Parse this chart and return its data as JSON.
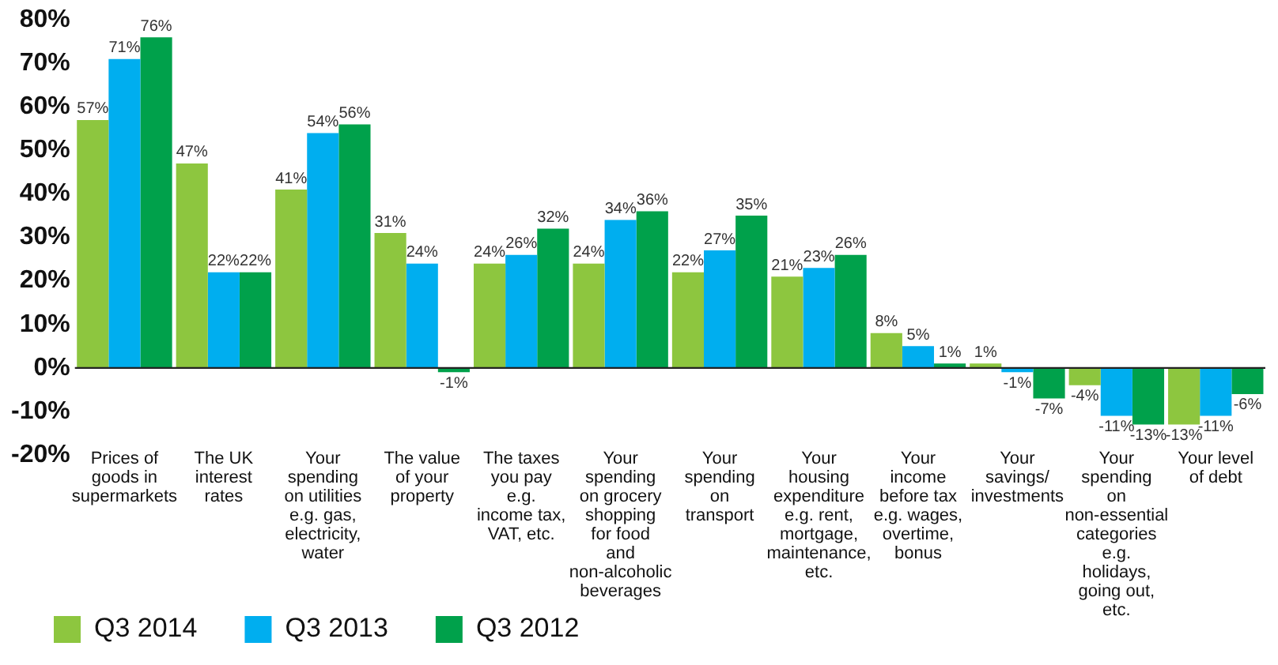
{
  "chart_data": {
    "type": "bar",
    "categories": [
      "Prices of goods in supermarkets",
      "The UK interest rates",
      "Your spending on utilities e.g. gas, electricity, water",
      "The value of your property",
      "The taxes you pay e.g. income tax, VAT, etc.",
      "Your spending on grocery shopping for food and non-alcoholic beverages",
      "Your spending on transport",
      "Your housing expenditure e.g. rent, mortgage, maintenance, etc.",
      "Your income before tax e.g. wages, overtime, bonus",
      "Your savings/ investments",
      "Your spending on non-essential categories e.g. holidays, going out, etc.",
      "Your level of debt"
    ],
    "series": [
      {
        "name": "Q3 2014",
        "color": "#8dc63f",
        "values": [
          57,
          47,
          41,
          31,
          24,
          24,
          22,
          21,
          8,
          1,
          -4,
          -13
        ],
        "value_labels": [
          "57%",
          "47%",
          "41%",
          "31%",
          "24%",
          "24%",
          "22%",
          "21%",
          "8%",
          "1%",
          "-4%",
          "-13%"
        ]
      },
      {
        "name": "Q3 2013",
        "color": "#00aeef",
        "values": [
          71,
          22,
          54,
          24,
          26,
          34,
          27,
          23,
          5,
          -1,
          -11,
          -11
        ],
        "value_labels": [
          "71%",
          "22%",
          "54%",
          "24%",
          "26%",
          "34%",
          "27%",
          "23%",
          "5%",
          "-1%",
          "-11%",
          "-11%"
        ]
      },
      {
        "name": "Q3 2012",
        "color": "#00a14b",
        "values": [
          76,
          22,
          56,
          -1,
          32,
          36,
          35,
          26,
          1,
          -7,
          -13,
          -6
        ],
        "value_labels": [
          "76%",
          "22%",
          "56%",
          "-1%",
          "32%",
          "36%",
          "35%",
          "26%",
          "1%",
          "-7%",
          "-13%",
          "-6%"
        ]
      }
    ],
    "ylim": [
      -20,
      80
    ],
    "yticks": [
      {
        "value": -20,
        "label": "-20%"
      },
      {
        "value": -10,
        "label": "-10%"
      },
      {
        "value": 0,
        "label": "0%"
      },
      {
        "value": 10,
        "label": "10%"
      },
      {
        "value": 20,
        "label": "20%"
      },
      {
        "value": 30,
        "label": "30%"
      },
      {
        "value": 40,
        "label": "40%"
      },
      {
        "value": 50,
        "label": "50%"
      },
      {
        "value": 60,
        "label": "60%"
      },
      {
        "value": 70,
        "label": "70%"
      },
      {
        "value": 80,
        "label": "80%"
      }
    ],
    "grid": false,
    "ref_lines": [
      {
        "axis": "y",
        "value": 0,
        "color": "#222222"
      }
    ],
    "legend": "bottom left"
  }
}
